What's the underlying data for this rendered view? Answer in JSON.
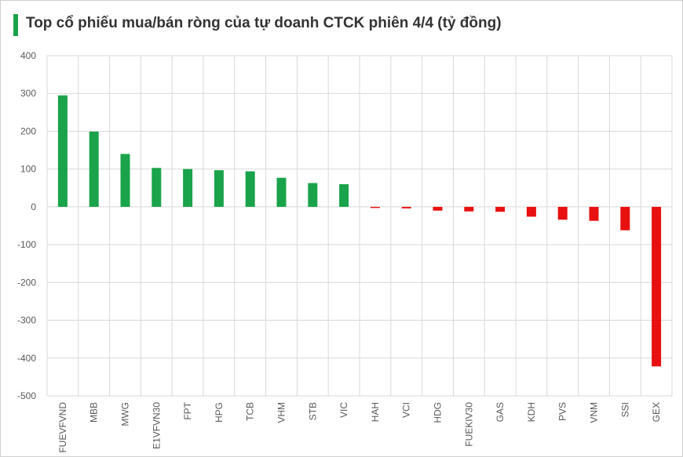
{
  "header": {
    "title": "Top cổ phiếu mua/bán ròng của tự doanh CTCK phiên 4/4 (tỷ đồng)",
    "accent_color": "#1aa34a"
  },
  "chart_data": {
    "type": "bar",
    "title": "Top cổ phiếu mua/bán ròng của tự doanh CTCK phiên 4/4 (tỷ đồng)",
    "xlabel": "",
    "ylabel": "",
    "ylim": [
      -500,
      400
    ],
    "yticks": [
      400,
      300,
      200,
      100,
      0,
      -100,
      -200,
      -300,
      -400,
      -500
    ],
    "grid": true,
    "legend": "none",
    "positive_color": "#1aa34a",
    "negative_color": "#e81010",
    "categories": [
      "FUEVFVND",
      "MBB",
      "MWG",
      "E1VFVN30",
      "FPT",
      "HPG",
      "TCB",
      "VHM",
      "STB",
      "VIC",
      "HAH",
      "VCI",
      "HDG",
      "FUEKIV30",
      "GAS",
      "KDH",
      "PVS",
      "VNM",
      "SSI",
      "GEX"
    ],
    "values": [
      295,
      199,
      140,
      103,
      100,
      97,
      94,
      77,
      63,
      60,
      -3,
      -4,
      -10,
      -12,
      -13,
      -26,
      -34,
      -37,
      -62,
      -422
    ]
  }
}
